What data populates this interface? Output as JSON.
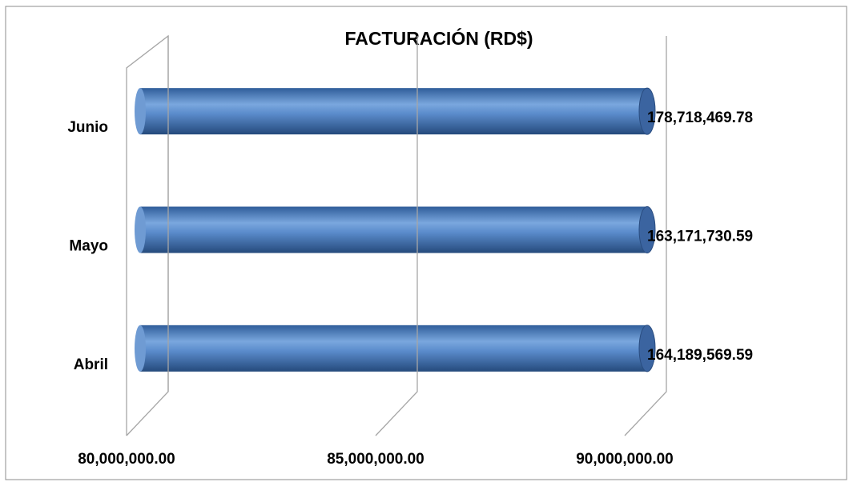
{
  "chart_data": {
    "type": "bar",
    "orientation": "horizontal",
    "title": "FACTURACIÓN (RD$)",
    "categories": [
      "Abril",
      "Mayo",
      "Junio"
    ],
    "values": [
      164189569.59,
      163171730.59,
      178718469.78
    ],
    "value_labels": [
      "164,189,569.59",
      "163,171,730.59",
      "178,718,469.78"
    ],
    "color": "#4f81bd",
    "xlim": [
      80000000,
      90000000
    ],
    "xticks": [
      {
        "value": 80000000,
        "label": "80,000,000.00"
      },
      {
        "value": 85000000,
        "label": "85,000,000.00"
      },
      {
        "value": 90000000,
        "label": "90,000,000.00"
      }
    ],
    "grid": true
  }
}
